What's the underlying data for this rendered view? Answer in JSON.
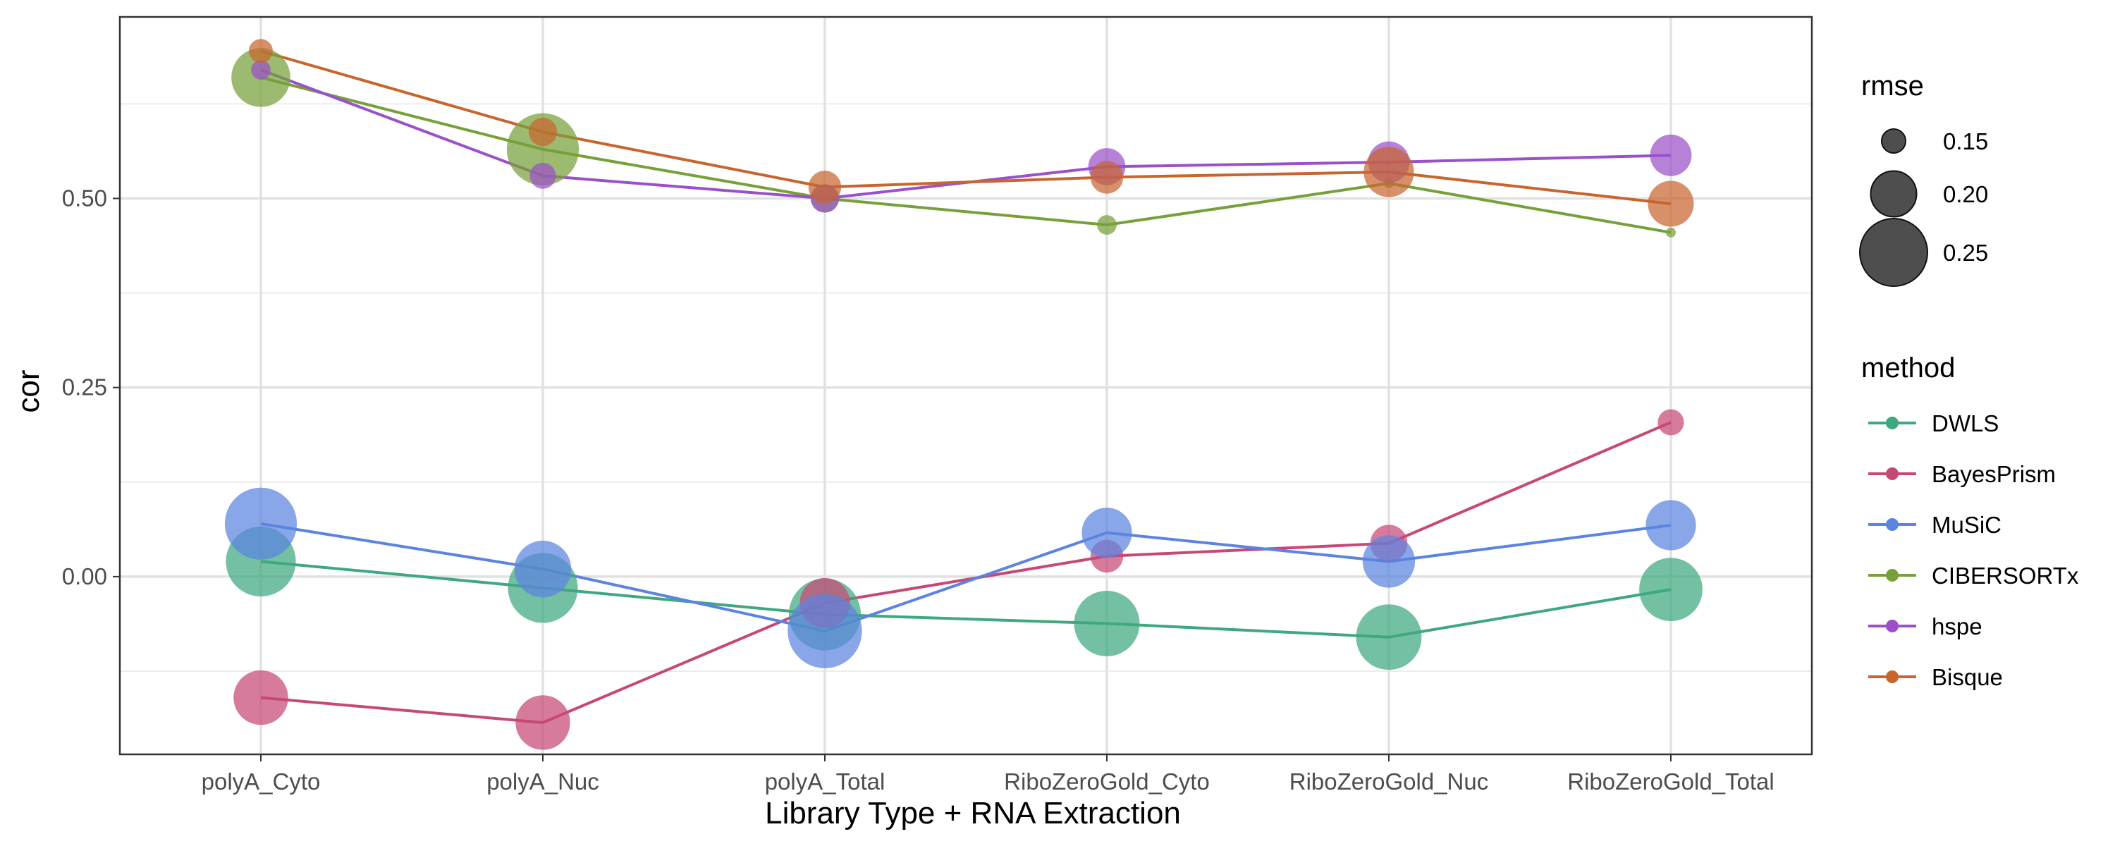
{
  "chart_data": {
    "type": "line",
    "xlabel": "Library Type + RNA Extraction",
    "ylabel": "cor",
    "categories": [
      "polyA_Cyto",
      "polyA_Nuc",
      "polyA_Total",
      "RiboZeroGold_Cyto",
      "RiboZeroGold_Nuc",
      "RiboZeroGold_Total"
    ],
    "y_ticks": [
      "0.00",
      "0.25",
      "0.50"
    ],
    "ylim": [
      -0.235,
      0.74
    ],
    "grid": true,
    "size_legend": {
      "title": "rmse",
      "entries": [
        {
          "label": "0.15",
          "value": 0.15
        },
        {
          "label": "0.20",
          "value": 0.2
        },
        {
          "label": "0.25",
          "value": 0.25
        }
      ]
    },
    "color_legend": {
      "title": "method",
      "placement": "right"
    },
    "series": [
      {
        "name": "DWLS",
        "color": "#3fa87e",
        "values": [
          0.02,
          -0.015,
          -0.05,
          -0.062,
          -0.08,
          -0.017
        ],
        "rmse": [
          0.255,
          0.255,
          0.26,
          0.245,
          0.245,
          0.24
        ]
      },
      {
        "name": "BayesPrism",
        "color": "#c74877",
        "values": [
          -0.16,
          -0.193,
          -0.035,
          0.027,
          0.044,
          0.204
        ],
        "rmse": [
          0.22,
          0.22,
          0.21,
          0.17,
          0.18,
          0.155
        ]
      },
      {
        "name": "MuSiC",
        "color": "#5b84e0",
        "values": [
          0.07,
          0.01,
          -0.072,
          0.058,
          0.02,
          0.068
        ],
        "rmse": [
          0.26,
          0.225,
          0.265,
          0.21,
          0.215,
          0.21
        ]
      },
      {
        "name": "CIBERSORTx",
        "color": "#77a03a",
        "values": [
          0.66,
          0.565,
          0.5,
          0.465,
          0.52,
          0.455
        ],
        "rmse": [
          0.23,
          0.26,
          0.16,
          0.14,
          0.11,
          0.1
        ]
      },
      {
        "name": "hspe",
        "color": "#9b50c9",
        "values": [
          0.67,
          0.53,
          0.5,
          0.542,
          0.548,
          0.557
        ],
        "rmse": [
          0.14,
          0.155,
          0.16,
          0.18,
          0.19,
          0.19
        ]
      },
      {
        "name": "Bisque",
        "color": "#c8652f",
        "values": [
          0.695,
          0.588,
          0.515,
          0.528,
          0.535,
          0.493
        ],
        "rmse": [
          0.15,
          0.16,
          0.17,
          0.17,
          0.21,
          0.2
        ]
      }
    ]
  }
}
